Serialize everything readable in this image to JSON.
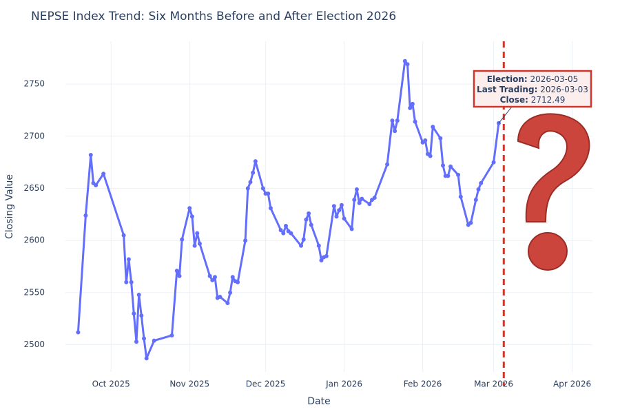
{
  "chart_data": {
    "type": "line",
    "title": "NEPSE Index Trend: Six Months Before and After Election 2026",
    "x_label": "Date",
    "y_label": "Closing Value",
    "x": [
      "2025-09-18",
      "2025-09-21",
      "2025-09-23",
      "2025-09-24",
      "2025-09-25",
      "2025-09-28",
      "2025-10-06",
      "2025-10-07",
      "2025-10-08",
      "2025-10-09",
      "2025-10-10",
      "2025-10-11",
      "2025-10-12",
      "2025-10-13",
      "2025-10-14",
      "2025-10-15",
      "2025-10-18",
      "2025-10-25",
      "2025-10-27",
      "2025-10-28",
      "2025-10-29",
      "2025-11-01",
      "2025-11-02",
      "2025-11-03",
      "2025-11-04",
      "2025-11-05",
      "2025-11-09",
      "2025-11-10",
      "2025-11-11",
      "2025-11-12",
      "2025-11-13",
      "2025-11-16",
      "2025-11-17",
      "2025-11-18",
      "2025-11-19",
      "2025-11-20",
      "2025-11-23",
      "2025-11-24",
      "2025-11-25",
      "2025-11-26",
      "2025-11-27",
      "2025-11-30",
      "2025-12-01",
      "2025-12-02",
      "2025-12-03",
      "2025-12-07",
      "2025-12-08",
      "2025-12-09",
      "2025-12-10",
      "2025-12-11",
      "2025-12-15",
      "2025-12-16",
      "2025-12-17",
      "2025-12-18",
      "2025-12-19",
      "2025-12-22",
      "2025-12-23",
      "2025-12-24",
      "2025-12-25",
      "2025-12-28",
      "2025-12-29",
      "2025-12-30",
      "2025-12-31",
      "2026-01-01",
      "2026-01-04",
      "2026-01-05",
      "2026-01-06",
      "2026-01-07",
      "2026-01-08",
      "2026-01-11",
      "2026-01-12",
      "2026-01-13",
      "2026-01-18",
      "2026-01-20",
      "2026-01-21",
      "2026-01-22",
      "2026-01-25",
      "2026-01-26",
      "2026-01-27",
      "2026-01-28",
      "2026-01-29",
      "2026-02-01",
      "2026-02-02",
      "2026-02-03",
      "2026-02-04",
      "2026-02-05",
      "2026-02-08",
      "2026-02-09",
      "2026-02-10",
      "2026-02-11",
      "2026-02-12",
      "2026-02-15",
      "2026-02-16",
      "2026-02-19",
      "2026-02-20",
      "2026-02-22",
      "2026-02-23",
      "2026-02-24",
      "2026-03-01",
      "2026-03-03"
    ],
    "values": [
      2512,
      2624,
      2682,
      2655,
      2653,
      2664,
      2605,
      2560,
      2582,
      2560,
      2530,
      2503,
      2548,
      2528,
      2506,
      2487,
      2504,
      2509,
      2571,
      2566,
      2601,
      2631,
      2623,
      2595,
      2607,
      2597,
      2566,
      2562,
      2565,
      2545,
      2546,
      2540,
      2550,
      2565,
      2561,
      2560,
      2600,
      2650,
      2656,
      2665,
      2676,
      2650,
      2645,
      2645,
      2631,
      2610,
      2607,
      2614,
      2609,
      2607,
      2595,
      2601,
      2620,
      2626,
      2615,
      2595,
      2581,
      2584,
      2585,
      2633,
      2623,
      2629,
      2634,
      2621,
      2611,
      2639,
      2649,
      2636,
      2640,
      2635,
      2639,
      2641,
      2673,
      2715,
      2705,
      2715,
      2772,
      2769,
      2727,
      2731,
      2714,
      2694,
      2696,
      2683,
      2681,
      2709,
      2698,
      2672,
      2662,
      2662,
      2671,
      2663,
      2642,
      2615,
      2617,
      2639,
      2649,
      2655,
      2675,
      2712.49
    ],
    "color": "#636efa",
    "xlim": [
      "2025-09-13",
      "2026-04-09"
    ],
    "xticks": [
      {
        "value": "2025-10-01",
        "label": "Oct 2025"
      },
      {
        "value": "2025-11-01",
        "label": "Nov 2025"
      },
      {
        "value": "2025-12-01",
        "label": "Dec 2025"
      },
      {
        "value": "2026-01-01",
        "label": "Jan 2026"
      },
      {
        "value": "2026-02-01",
        "label": "Feb 2026"
      },
      {
        "value": "2026-03-01",
        "label": "Mar 2026"
      },
      {
        "value": "2026-04-01",
        "label": "Apr 2026"
      }
    ],
    "ylim": [
      2474,
      2791
    ],
    "yticks": [
      2500,
      2550,
      2600,
      2650,
      2700,
      2750
    ],
    "grid": true,
    "election_date": "2026-03-05",
    "election_line_color": "#d0352c",
    "annotation": {
      "election_label": "Election:",
      "last_trading_label": "Last Trading:",
      "close_label": "Close:"
    }
  }
}
